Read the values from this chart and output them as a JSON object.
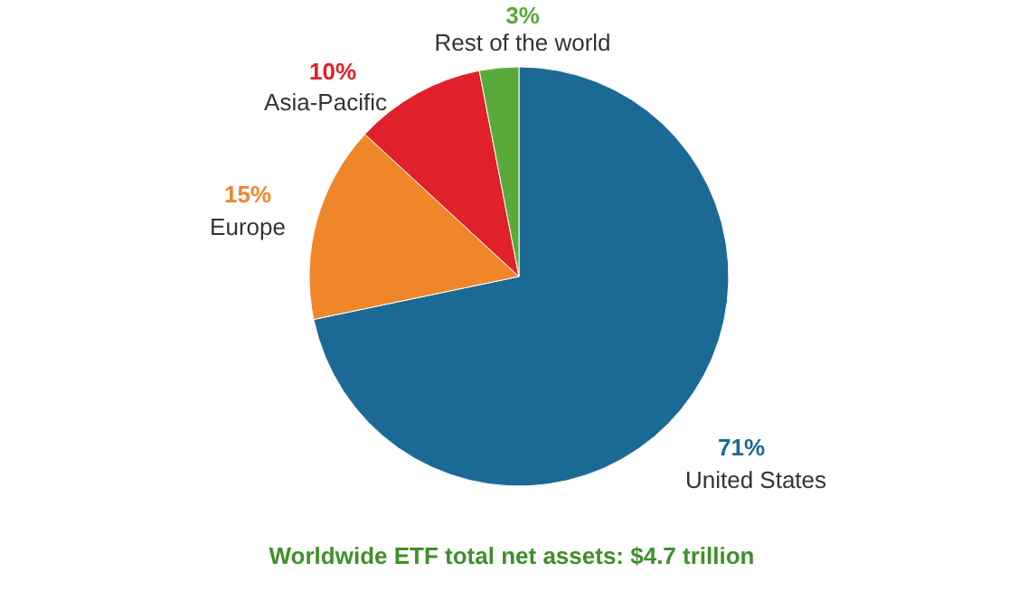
{
  "chart_data": {
    "type": "pie",
    "title": "Worldwide ETF total net assets: $4.7 trillion",
    "categories": [
      "United States",
      "Europe",
      "Asia-Pacific",
      "Rest of the world"
    ],
    "values": [
      71,
      15,
      10,
      3
    ],
    "colors": [
      "#1b6a96",
      "#f0862a",
      "#e0202a",
      "#5aaa3a"
    ],
    "value_labels": [
      "71%",
      "15%",
      "10%",
      "3%"
    ]
  }
}
